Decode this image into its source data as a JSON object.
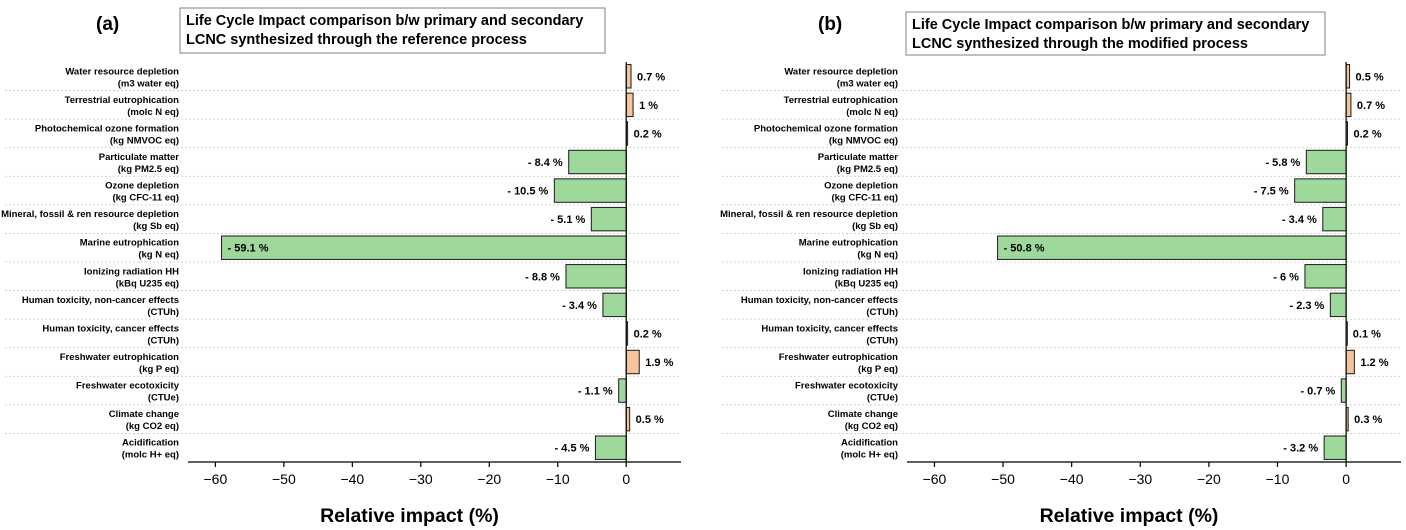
{
  "chart_data": [
    {
      "type": "bar",
      "orientation": "horizontal",
      "panel_label": "(a)",
      "title_lines": [
        "Life Cycle Impact comparison b/w primary and secondary",
        "LCNC synthesized through the reference process"
      ],
      "xlabel": "Relative impact (%)",
      "xlim": [
        -64,
        8
      ],
      "xticks": [
        -60,
        -50,
        -40,
        -30,
        -20,
        -10,
        0
      ],
      "xtick_labels": [
        "−60",
        "−50",
        "−40",
        "−30",
        "−20",
        "−10",
        "0"
      ],
      "categories": [
        [
          "Water resource depletion",
          "(m3 water eq)"
        ],
        [
          "Terrestrial eutrophication",
          "(molc N eq)"
        ],
        [
          "Photochemical ozone formation",
          "(kg NMVOC eq)"
        ],
        [
          "Particulate matter",
          "(kg PM2.5 eq)"
        ],
        [
          "Ozone depletion",
          "(kg CFC-11 eq)"
        ],
        [
          "Mineral, fossil & ren resource depletion",
          "(kg Sb eq)"
        ],
        [
          "Marine eutrophication",
          "(kg N eq)"
        ],
        [
          "Ionizing radiation HH",
          "(kBq U235 eq)"
        ],
        [
          "Human toxicity, non-cancer effects",
          "(CTUh)"
        ],
        [
          "Human toxicity, cancer effects",
          "(CTUh)"
        ],
        [
          "Freshwater eutrophication",
          "(kg P eq)"
        ],
        [
          "Freshwater ecotoxicity",
          "(CTUe)"
        ],
        [
          "Climate change",
          "(kg CO2 eq)"
        ],
        [
          "Acidification",
          "(molc H+ eq)"
        ]
      ],
      "values": [
        0.7,
        1,
        0.2,
        -8.4,
        -10.5,
        -5.1,
        -59.1,
        -8.8,
        -3.4,
        0.2,
        1.9,
        -1.1,
        0.5,
        -4.5
      ],
      "value_labels": [
        "0.7 %",
        "1 %",
        "0.2 %",
        "- 8.4 %",
        "- 10.5 %",
        "- 5.1 %",
        "- 59.1 %",
        "- 8.8 %",
        "- 3.4 %",
        "0.2 %",
        "1.9 %",
        "- 1.1 %",
        "0.5 %",
        "- 4.5 %"
      ],
      "colors": {
        "positive": "#f6c49a",
        "negative": "#9ed99b"
      },
      "grid": "horizontal dotted"
    },
    {
      "type": "bar",
      "orientation": "horizontal",
      "panel_label": "(b)",
      "title_lines": [
        "Life Cycle Impact comparison b/w primary and secondary",
        "LCNC synthesized through the modified process"
      ],
      "xlabel": "Relative impact (%)",
      "xlim": [
        -64,
        8
      ],
      "xticks": [
        -60,
        -50,
        -40,
        -30,
        -20,
        -10,
        0
      ],
      "xtick_labels": [
        "−60",
        "−50",
        "−40",
        "−30",
        "−20",
        "−10",
        "0"
      ],
      "categories": [
        [
          "Water resource depletion",
          "(m3 water eq)"
        ],
        [
          "Terrestrial eutrophication",
          "(molc N eq)"
        ],
        [
          "Photochemical ozone formation",
          "(kg NMVOC eq)"
        ],
        [
          "Particulate matter",
          "(kg PM2.5 eq)"
        ],
        [
          "Ozone depletion",
          "(kg CFC-11 eq)"
        ],
        [
          "Mineral, fossil & ren resource depletion",
          "(kg Sb eq)"
        ],
        [
          "Marine eutrophication",
          "(kg N eq)"
        ],
        [
          "Ionizing radiation HH",
          "(kBq U235 eq)"
        ],
        [
          "Human toxicity, non-cancer effects",
          "(CTUh)"
        ],
        [
          "Human toxicity, cancer effects",
          "(CTUh)"
        ],
        [
          "Freshwater eutrophication",
          "(kg P eq)"
        ],
        [
          "Freshwater ecotoxicity",
          "(CTUe)"
        ],
        [
          "Climate change",
          "(kg CO2 eq)"
        ],
        [
          "Acidification",
          "(molc H+ eq)"
        ]
      ],
      "values": [
        0.5,
        0.7,
        0.2,
        -5.8,
        -7.5,
        -3.4,
        -50.8,
        -6,
        -2.3,
        0.1,
        1.2,
        -0.7,
        0.3,
        -3.2
      ],
      "value_labels": [
        "0.5 %",
        "0.7 %",
        "0.2 %",
        "- 5.8 %",
        "- 7.5 %",
        "- 3.4 %",
        "- 50.8 %",
        "- 6 %",
        "- 2.3 %",
        "0.1 %",
        "1.2 %",
        "- 0.7 %",
        "0.3 %",
        "- 3.2 %"
      ],
      "colors": {
        "positive": "#f6c49a",
        "negative": "#9ed99b"
      },
      "grid": "horizontal dotted"
    }
  ]
}
